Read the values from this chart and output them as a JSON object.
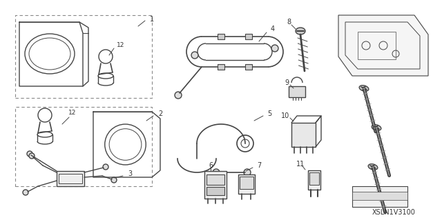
{
  "bg_color": "#ffffff",
  "lc": "#444444",
  "lc_dark": "#222222",
  "text_color": "#333333",
  "dash_color": "#888888",
  "figsize": [
    6.4,
    3.19
  ],
  "dpi": 100,
  "footer_text": "XSLN1V3100"
}
